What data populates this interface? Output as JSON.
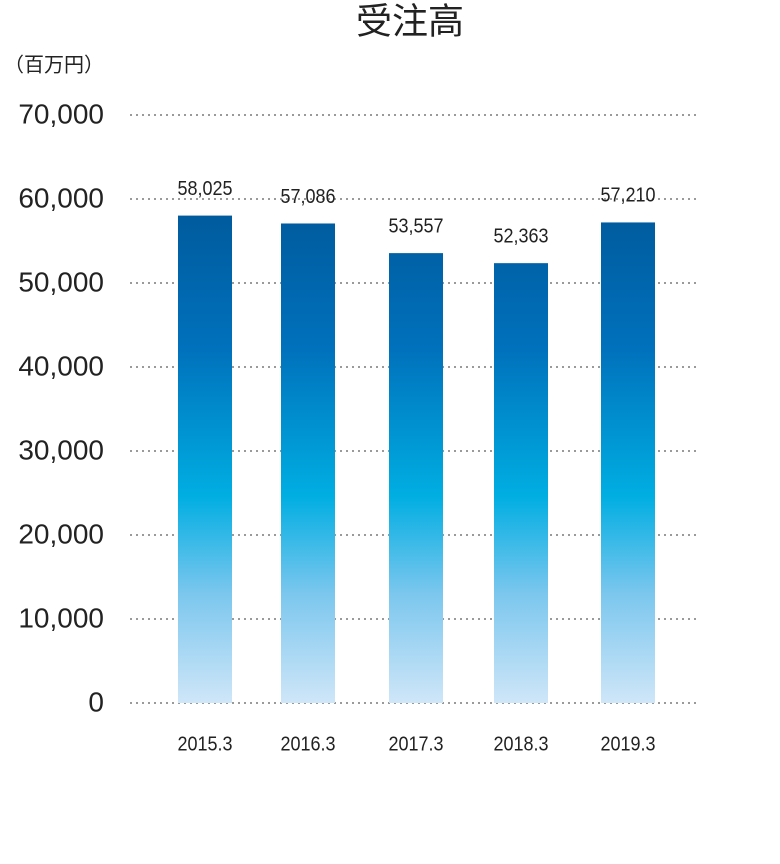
{
  "chart_data": {
    "type": "bar",
    "title": "受注高",
    "y_label": "（百万円）",
    "categories": [
      "2015.3",
      "2016.3",
      "2017.3",
      "2018.3",
      "2019.3"
    ],
    "values": [
      58025,
      57086,
      53557,
      52363,
      57210
    ],
    "value_labels": [
      "58,025",
      "57,086",
      "53,557",
      "52,363",
      "57,210"
    ],
    "color": "#0071bc",
    "ylim": [
      0,
      70000
    ],
    "yticks": [
      0,
      {
        "value": 10000,
        "label": "10,000"
      },
      {
        "value": 20000,
        "label": "20,000"
      },
      {
        "value": 30000,
        "label": "30,000"
      },
      {
        "value": 40000,
        "label": "40,000"
      },
      {
        "value": 50000,
        "label": "50,000"
      },
      {
        "value": 60000,
        "label": "60,000"
      },
      {
        "value": 70000,
        "label": "70,000"
      }
    ],
    "grid": true
  }
}
